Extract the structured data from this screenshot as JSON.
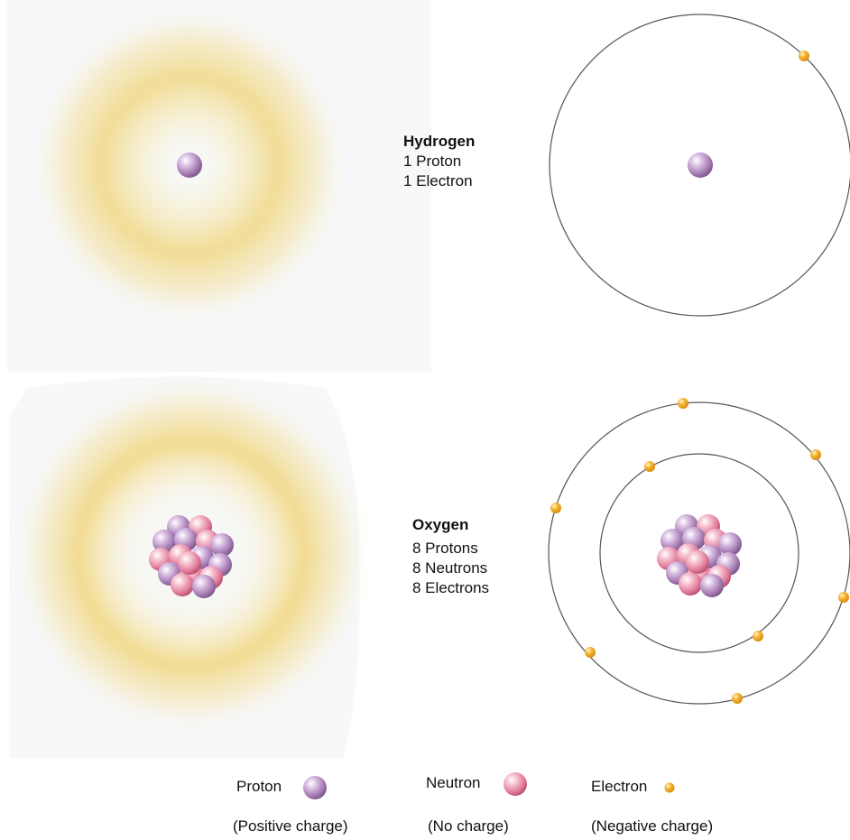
{
  "colors": {
    "proton": "#b98ec4",
    "neutron": "#e98aa7",
    "electron": "#f3a51e",
    "cloud": "#f1d780",
    "orbit": "#555555"
  },
  "hydrogen": {
    "name": "Hydrogen",
    "protons": "1 Proton",
    "electrons": "1 Electron"
  },
  "oxygen": {
    "name": "Oxygen",
    "protons": "8 Protons",
    "neutrons": "8 Neutrons",
    "electrons": "8 Electrons"
  },
  "legend": {
    "proton_label": "Proton",
    "proton_charge": "(Positive charge)",
    "neutron_label": "Neutron",
    "neutron_charge": "(No charge)",
    "electron_label": "Electron",
    "electron_charge": "(Negative charge)"
  }
}
